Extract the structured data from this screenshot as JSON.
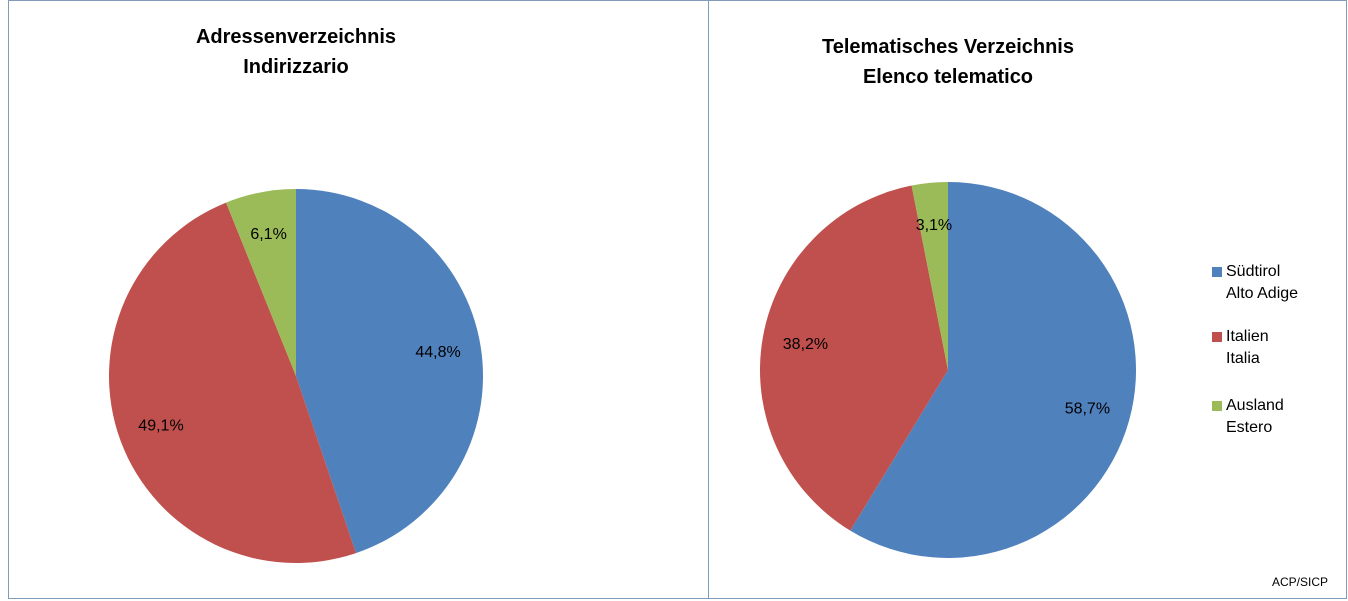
{
  "chart_data": [
    {
      "type": "pie",
      "title": "Adressenverzeichnis\nIndirizzario",
      "categories": [
        "Südtirol\nAlto Adige",
        "Italien\nItalia",
        "Ausland\nEstero"
      ],
      "values": [
        44.8,
        49.1,
        6.1
      ],
      "value_labels": [
        "44,8%",
        "49,1%",
        "6,1%"
      ],
      "colors": [
        "#4f81bd",
        "#c0504d",
        "#9bbb59"
      ],
      "legend": "none"
    },
    {
      "type": "pie",
      "title": "Telematisches Verzeichnis\nElenco telematico",
      "categories": [
        "Südtirol\nAlto Adige",
        "Italien\nItalia",
        "Ausland\nEstero"
      ],
      "values": [
        58.7,
        38.2,
        3.1
      ],
      "value_labels": [
        "58,7%",
        "38,2%",
        "3,1%"
      ],
      "colors": [
        "#4f81bd",
        "#c0504d",
        "#9bbb59"
      ],
      "legend": "right",
      "annotation": "ACP/SICP"
    }
  ]
}
